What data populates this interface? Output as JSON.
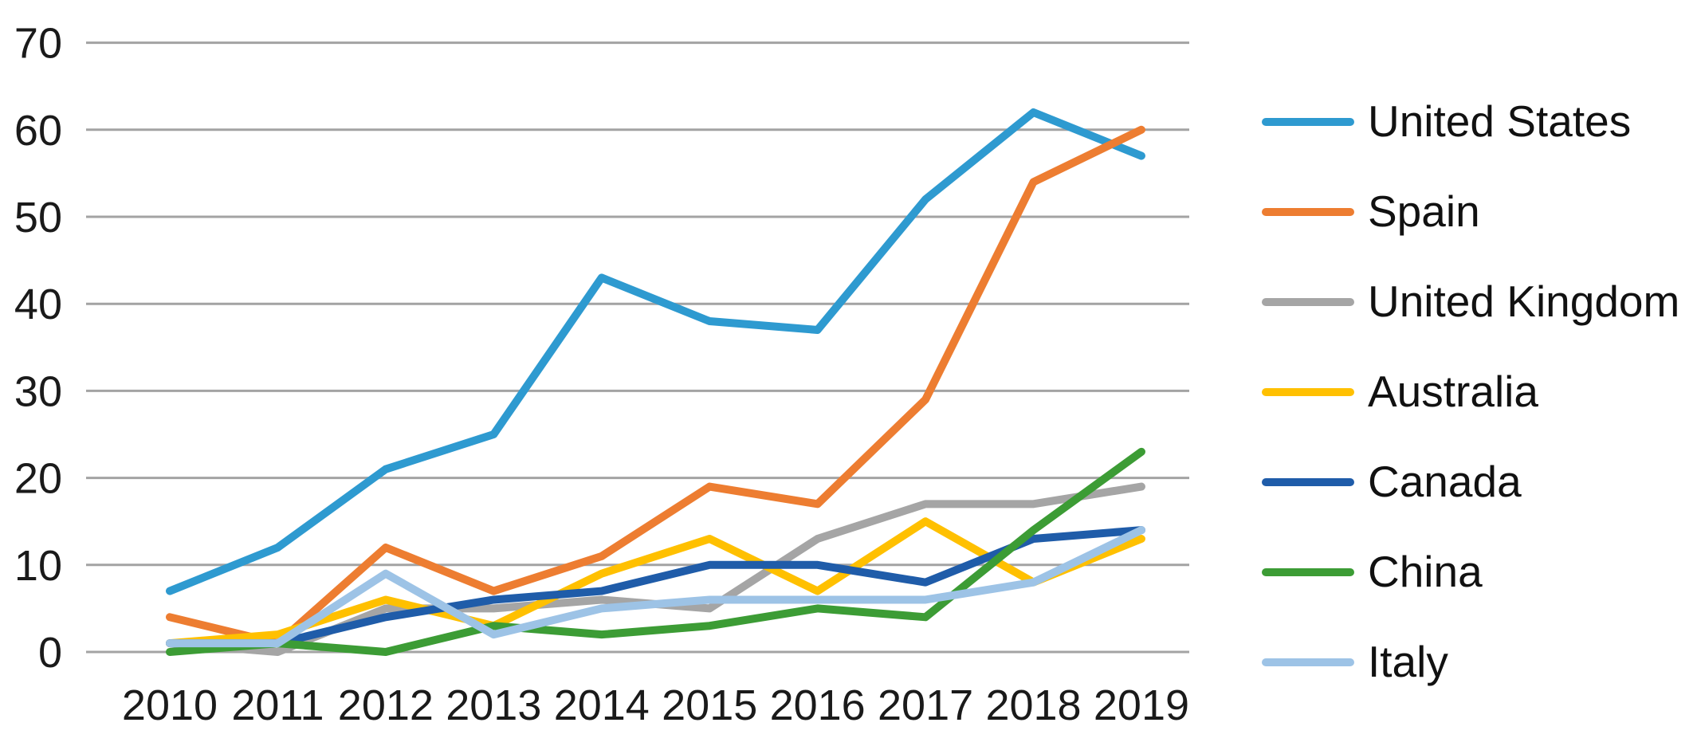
{
  "chart_data": {
    "type": "line",
    "title": "",
    "xlabel": "",
    "ylabel": "",
    "x": [
      "2010",
      "2011",
      "2012",
      "2013",
      "2014",
      "2015",
      "2016",
      "2017",
      "2018",
      "2019"
    ],
    "ylim": [
      0,
      70
    ],
    "yticks": [
      0,
      10,
      20,
      30,
      40,
      50,
      60,
      70
    ],
    "grid": true,
    "legend_position": "right",
    "series": [
      {
        "name": "United States",
        "color": "#2E9AD0",
        "values": [
          7,
          12,
          21,
          25,
          43,
          38,
          37,
          52,
          62,
          57
        ]
      },
      {
        "name": "Spain",
        "color": "#ED7D31",
        "values": [
          4,
          1,
          12,
          7,
          11,
          19,
          17,
          29,
          54,
          60
        ]
      },
      {
        "name": "United Kingdom",
        "color": "#A5A5A5",
        "values": [
          1,
          0,
          5,
          5,
          6,
          5,
          13,
          17,
          17,
          19
        ]
      },
      {
        "name": "Australia",
        "color": "#FFC000",
        "values": [
          1,
          2,
          6,
          3,
          9,
          13,
          7,
          15,
          8,
          13
        ]
      },
      {
        "name": "Canada",
        "color": "#1F5CA9",
        "values": [
          1,
          1,
          4,
          6,
          7,
          10,
          10,
          8,
          13,
          14
        ]
      },
      {
        "name": "China",
        "color": "#3C9C35",
        "values": [
          0,
          1,
          0,
          3,
          2,
          3,
          5,
          4,
          14,
          23
        ]
      },
      {
        "name": "Italy",
        "color": "#9DC3E6",
        "values": [
          1,
          1,
          9,
          2,
          5,
          6,
          6,
          6,
          8,
          14
        ]
      }
    ]
  },
  "axis_style": {
    "text_color": "#1a1a1a",
    "grid_color": "#A3A3A3",
    "tick_font_size": 54
  }
}
